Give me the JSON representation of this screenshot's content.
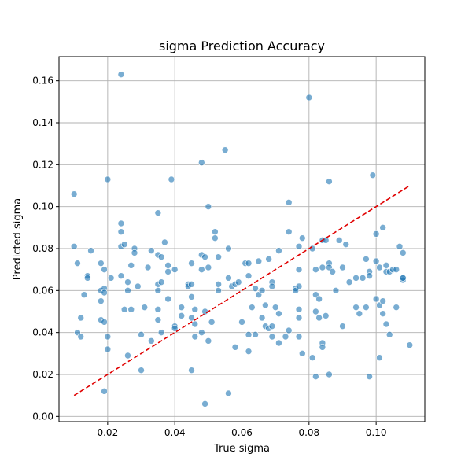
{
  "chart_data": {
    "type": "scatter",
    "title": "sigma Prediction Accuracy",
    "xlabel": "True sigma",
    "ylabel": "Predicted sigma",
    "xlim": [
      0.0055,
      0.1145
    ],
    "ylim": [
      -0.0025,
      0.1715
    ],
    "xticks": [
      0.02,
      0.04,
      0.06,
      0.08,
      0.1
    ],
    "xtick_labels": [
      "0.02",
      "0.04",
      "0.06",
      "0.08",
      "0.10"
    ],
    "yticks": [
      0.0,
      0.02,
      0.04,
      0.06,
      0.08,
      0.1,
      0.12,
      0.14,
      0.16
    ],
    "ytick_labels": [
      "0.00",
      "0.02",
      "0.04",
      "0.06",
      "0.08",
      "0.10",
      "0.12",
      "0.14",
      "0.16"
    ],
    "grid": true,
    "point_color": "#1f77b4",
    "reference_line": {
      "x": [
        0.01,
        0.11
      ],
      "y": [
        0.01,
        0.11
      ],
      "color": "#e00000",
      "style": "dashed"
    },
    "points": [
      [
        0.01,
        0.081
      ],
      [
        0.01,
        0.106
      ],
      [
        0.011,
        0.04
      ],
      [
        0.011,
        0.073
      ],
      [
        0.012,
        0.047
      ],
      [
        0.012,
        0.038
      ],
      [
        0.013,
        0.058
      ],
      [
        0.014,
        0.067
      ],
      [
        0.014,
        0.066
      ],
      [
        0.015,
        0.079
      ],
      [
        0.018,
        0.06
      ],
      [
        0.018,
        0.046
      ],
      [
        0.018,
        0.055
      ],
      [
        0.018,
        0.073
      ],
      [
        0.019,
        0.07
      ],
      [
        0.019,
        0.061
      ],
      [
        0.019,
        0.045
      ],
      [
        0.019,
        0.059
      ],
      [
        0.019,
        0.012
      ],
      [
        0.02,
        0.113
      ],
      [
        0.02,
        0.038
      ],
      [
        0.02,
        0.032
      ],
      [
        0.021,
        0.066
      ],
      [
        0.024,
        0.163
      ],
      [
        0.024,
        0.092
      ],
      [
        0.024,
        0.088
      ],
      [
        0.024,
        0.081
      ],
      [
        0.024,
        0.067
      ],
      [
        0.025,
        0.082
      ],
      [
        0.025,
        0.051
      ],
      [
        0.026,
        0.064
      ],
      [
        0.026,
        0.06
      ],
      [
        0.026,
        0.029
      ],
      [
        0.027,
        0.051
      ],
      [
        0.027,
        0.072
      ],
      [
        0.028,
        0.08
      ],
      [
        0.028,
        0.078
      ],
      [
        0.029,
        0.062
      ],
      [
        0.03,
        0.039
      ],
      [
        0.03,
        0.022
      ],
      [
        0.031,
        0.052
      ],
      [
        0.032,
        0.071
      ],
      [
        0.033,
        0.079
      ],
      [
        0.033,
        0.036
      ],
      [
        0.035,
        0.077
      ],
      [
        0.035,
        0.097
      ],
      [
        0.035,
        0.063
      ],
      [
        0.035,
        0.06
      ],
      [
        0.035,
        0.051
      ],
      [
        0.035,
        0.046
      ],
      [
        0.036,
        0.076
      ],
      [
        0.036,
        0.064
      ],
      [
        0.036,
        0.04
      ],
      [
        0.037,
        0.083
      ],
      [
        0.038,
        0.072
      ],
      [
        0.038,
        0.069
      ],
      [
        0.038,
        0.056
      ],
      [
        0.039,
        0.113
      ],
      [
        0.04,
        0.07
      ],
      [
        0.04,
        0.043
      ],
      [
        0.04,
        0.042
      ],
      [
        0.042,
        0.052
      ],
      [
        0.042,
        0.048
      ],
      [
        0.044,
        0.063
      ],
      [
        0.044,
        0.062
      ],
      [
        0.045,
        0.063
      ],
      [
        0.045,
        0.022
      ],
      [
        0.045,
        0.073
      ],
      [
        0.045,
        0.057
      ],
      [
        0.045,
        0.047
      ],
      [
        0.046,
        0.051
      ],
      [
        0.046,
        0.044
      ],
      [
        0.046,
        0.038
      ],
      [
        0.048,
        0.077
      ],
      [
        0.048,
        0.07
      ],
      [
        0.048,
        0.04
      ],
      [
        0.048,
        0.121
      ],
      [
        0.049,
        0.006
      ],
      [
        0.049,
        0.05
      ],
      [
        0.049,
        0.076
      ],
      [
        0.05,
        0.071
      ],
      [
        0.05,
        0.036
      ],
      [
        0.05,
        0.1
      ],
      [
        0.051,
        0.045
      ],
      [
        0.052,
        0.085
      ],
      [
        0.052,
        0.088
      ],
      [
        0.053,
        0.076
      ],
      [
        0.053,
        0.063
      ],
      [
        0.053,
        0.06
      ],
      [
        0.055,
        0.127
      ],
      [
        0.056,
        0.011
      ],
      [
        0.056,
        0.08
      ],
      [
        0.056,
        0.066
      ],
      [
        0.057,
        0.062
      ],
      [
        0.058,
        0.063
      ],
      [
        0.058,
        0.033
      ],
      [
        0.059,
        0.064
      ],
      [
        0.06,
        0.045
      ],
      [
        0.061,
        0.073
      ],
      [
        0.062,
        0.073
      ],
      [
        0.062,
        0.067
      ],
      [
        0.062,
        0.039
      ],
      [
        0.062,
        0.031
      ],
      [
        0.063,
        0.052
      ],
      [
        0.064,
        0.061
      ],
      [
        0.064,
        0.039
      ],
      [
        0.065,
        0.058
      ],
      [
        0.065,
        0.074
      ],
      [
        0.066,
        0.06
      ],
      [
        0.066,
        0.047
      ],
      [
        0.067,
        0.053
      ],
      [
        0.067,
        0.043
      ],
      [
        0.068,
        0.042
      ],
      [
        0.068,
        0.075
      ],
      [
        0.069,
        0.064
      ],
      [
        0.069,
        0.062
      ],
      [
        0.069,
        0.038
      ],
      [
        0.069,
        0.043
      ],
      [
        0.07,
        0.052
      ],
      [
        0.071,
        0.079
      ],
      [
        0.071,
        0.049
      ],
      [
        0.071,
        0.035
      ],
      [
        0.073,
        0.038
      ],
      [
        0.074,
        0.041
      ],
      [
        0.074,
        0.102
      ],
      [
        0.074,
        0.088
      ],
      [
        0.076,
        0.061
      ],
      [
        0.076,
        0.06
      ],
      [
        0.077,
        0.081
      ],
      [
        0.077,
        0.07
      ],
      [
        0.077,
        0.062
      ],
      [
        0.077,
        0.051
      ],
      [
        0.077,
        0.047
      ],
      [
        0.077,
        0.038
      ],
      [
        0.078,
        0.085
      ],
      [
        0.078,
        0.03
      ],
      [
        0.08,
        0.152
      ],
      [
        0.081,
        0.028
      ],
      [
        0.081,
        0.08
      ],
      [
        0.082,
        0.019
      ],
      [
        0.082,
        0.07
      ],
      [
        0.082,
        0.058
      ],
      [
        0.082,
        0.05
      ],
      [
        0.083,
        0.047
      ],
      [
        0.083,
        0.056
      ],
      [
        0.084,
        0.084
      ],
      [
        0.084,
        0.071
      ],
      [
        0.084,
        0.035
      ],
      [
        0.084,
        0.033
      ],
      [
        0.085,
        0.048
      ],
      [
        0.085,
        0.084
      ],
      [
        0.086,
        0.112
      ],
      [
        0.086,
        0.073
      ],
      [
        0.086,
        0.071
      ],
      [
        0.086,
        0.02
      ],
      [
        0.087,
        0.069
      ],
      [
        0.088,
        0.06
      ],
      [
        0.089,
        0.084
      ],
      [
        0.09,
        0.043
      ],
      [
        0.09,
        0.071
      ],
      [
        0.091,
        0.082
      ],
      [
        0.092,
        0.064
      ],
      [
        0.094,
        0.066
      ],
      [
        0.094,
        0.052
      ],
      [
        0.095,
        0.049
      ],
      [
        0.096,
        0.066
      ],
      [
        0.097,
        0.075
      ],
      [
        0.097,
        0.052
      ],
      [
        0.098,
        0.069
      ],
      [
        0.098,
        0.067
      ],
      [
        0.098,
        0.019
      ],
      [
        0.099,
        0.115
      ],
      [
        0.1,
        0.087
      ],
      [
        0.1,
        0.074
      ],
      [
        0.1,
        0.056
      ],
      [
        0.101,
        0.053
      ],
      [
        0.101,
        0.028
      ],
      [
        0.101,
        0.071
      ],
      [
        0.102,
        0.055
      ],
      [
        0.102,
        0.049
      ],
      [
        0.102,
        0.09
      ],
      [
        0.103,
        0.072
      ],
      [
        0.103,
        0.069
      ],
      [
        0.103,
        0.044
      ],
      [
        0.104,
        0.069
      ],
      [
        0.104,
        0.039
      ],
      [
        0.105,
        0.07
      ],
      [
        0.106,
        0.07
      ],
      [
        0.106,
        0.052
      ],
      [
        0.107,
        0.081
      ],
      [
        0.108,
        0.078
      ],
      [
        0.108,
        0.066
      ],
      [
        0.108,
        0.065
      ],
      [
        0.108,
        0.066
      ],
      [
        0.11,
        0.034
      ]
    ]
  }
}
